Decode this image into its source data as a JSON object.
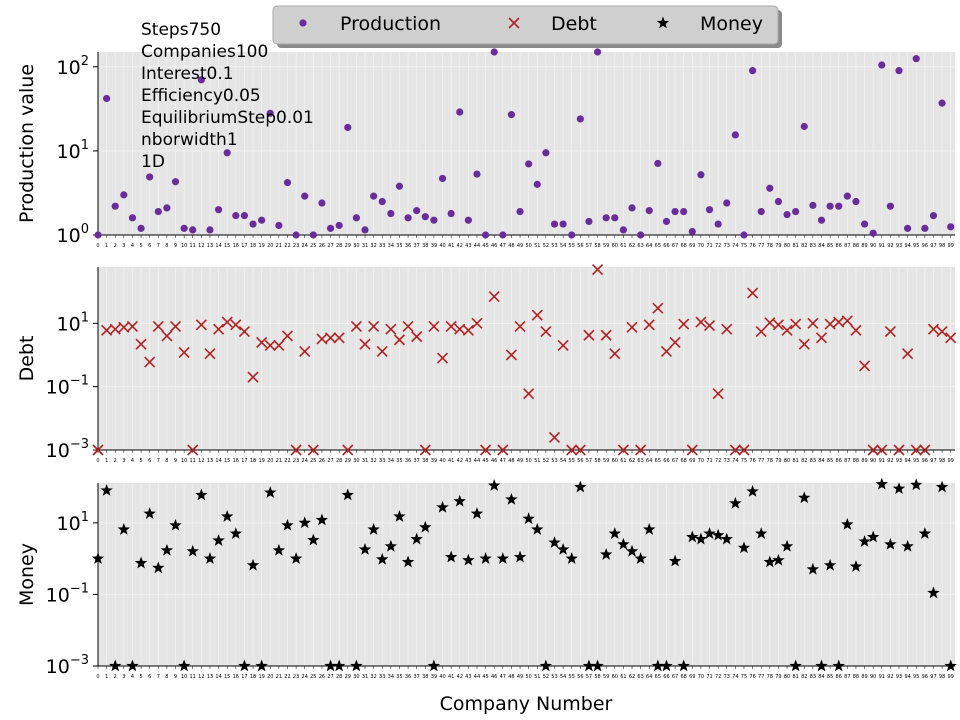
{
  "chart_data": [
    {
      "type": "scatter",
      "scale": "log",
      "ylabel": "Production value",
      "ylim": [
        1,
        150
      ],
      "yticks": [
        {
          "v": 1,
          "b": "10",
          "e": "0"
        },
        {
          "v": 10,
          "b": "10",
          "e": "1"
        },
        {
          "v": 100,
          "b": "10",
          "e": "2"
        }
      ],
      "series": [
        {
          "name": "Production",
          "color": "#6a2c9a",
          "marker": "circle"
        }
      ],
      "x": [
        0,
        1,
        2,
        3,
        4,
        5,
        6,
        7,
        8,
        9,
        10,
        11,
        12,
        13,
        14,
        15,
        16,
        17,
        18,
        19,
        20,
        21,
        22,
        23,
        24,
        25,
        26,
        27,
        28,
        29,
        30,
        31,
        32,
        33,
        34,
        35,
        36,
        37,
        38,
        39,
        40,
        41,
        42,
        43,
        44,
        45,
        46,
        47,
        48,
        49,
        50,
        51,
        52,
        53,
        54,
        55,
        56,
        57,
        58,
        59,
        60,
        61,
        62,
        63,
        64,
        65,
        66,
        67,
        68,
        69,
        70,
        71,
        72,
        73,
        74,
        75,
        76,
        77,
        78,
        79,
        80,
        81,
        82,
        83,
        84,
        85,
        86,
        87,
        88,
        89,
        90,
        91,
        92,
        93,
        94,
        95,
        96,
        97,
        98,
        99
      ],
      "values": [
        1.0,
        42,
        2.2,
        3.0,
        1.6,
        1.2,
        4.9,
        1.9,
        2.1,
        4.3,
        1.2,
        1.15,
        70,
        1.15,
        2.0,
        9.5,
        1.7,
        1.7,
        1.35,
        1.5,
        28,
        1.3,
        4.2,
        1.0,
        2.9,
        1.0,
        2.4,
        1.2,
        1.3,
        19,
        1.6,
        1.15,
        2.9,
        2.5,
        1.8,
        3.8,
        1.6,
        1.95,
        1.65,
        1.5,
        4.7,
        1.8,
        29,
        1.5,
        5.3,
        1.0,
        150,
        1.0,
        27,
        1.9,
        7,
        4.0,
        9.5,
        1.35,
        1.35,
        1.0,
        24,
        1.45,
        150,
        1.6,
        1.6,
        1.15,
        2.1,
        1.0,
        1.95,
        7.1,
        1.45,
        1.9,
        1.9,
        1.1,
        5.2,
        2.0,
        1.35,
        2.4,
        15.5,
        1.0,
        90,
        1.9,
        3.6,
        2.5,
        1.75,
        1.9,
        19.5,
        2.25,
        1.5,
        2.2,
        2.2,
        2.9,
        2.5,
        1.35,
        1.05,
        105,
        2.2,
        90,
        1.2,
        125,
        1.2,
        1.7,
        37,
        1.25
      ]
    },
    {
      "type": "scatter",
      "scale": "log",
      "ylabel": "Debt",
      "ylim": [
        0.001,
        600
      ],
      "yticks": [
        {
          "v": 0.001,
          "b": "10",
          "e": "−3"
        },
        {
          "v": 0.1,
          "b": "10",
          "e": "−1"
        },
        {
          "v": 10,
          "b": "10",
          "e": "1"
        }
      ],
      "series": [
        {
          "name": "Debt",
          "color": "#b22222",
          "marker": "x"
        }
      ],
      "x": [
        0,
        1,
        2,
        3,
        4,
        5,
        6,
        7,
        8,
        9,
        10,
        11,
        12,
        13,
        14,
        15,
        16,
        17,
        18,
        19,
        20,
        21,
        22,
        23,
        24,
        25,
        26,
        27,
        28,
        29,
        30,
        31,
        32,
        33,
        34,
        35,
        36,
        37,
        38,
        39,
        40,
        41,
        42,
        43,
        44,
        45,
        46,
        47,
        48,
        49,
        50,
        51,
        52,
        53,
        54,
        55,
        56,
        57,
        58,
        59,
        60,
        61,
        62,
        63,
        64,
        65,
        66,
        67,
        68,
        69,
        70,
        71,
        72,
        73,
        74,
        75,
        76,
        77,
        78,
        79,
        80,
        81,
        82,
        83,
        84,
        85,
        86,
        87,
        88,
        89,
        90,
        91,
        92,
        93,
        94,
        95,
        96,
        97,
        98,
        99
      ],
      "values": [
        0.001,
        6.0,
        6.5,
        7.5,
        8.0,
        2.2,
        0.6,
        8.0,
        4.0,
        8.0,
        1.2,
        0.001,
        9.0,
        1.1,
        6.5,
        11,
        9.0,
        5.5,
        0.2,
        2.5,
        2.0,
        2.0,
        4.0,
        0.001,
        1.3,
        0.001,
        3.2,
        3.5,
        3.5,
        0.001,
        8.0,
        2.2,
        8.0,
        1.3,
        6.5,
        3.0,
        8.0,
        3.8,
        0.001,
        8.0,
        0.8,
        8.0,
        6.5,
        6.0,
        10,
        0.001,
        70,
        0.001,
        1.0,
        8.0,
        0.06,
        18,
        5.5,
        0.0025,
        2.0,
        0.001,
        0.001,
        4.2,
        500,
        4.2,
        1.1,
        0.001,
        7.5,
        0.001,
        9.0,
        30,
        1.3,
        2.5,
        9.5,
        0.001,
        11,
        8.5,
        0.06,
        6.5,
        0.001,
        0.001,
        90,
        5.5,
        10.5,
        9.0,
        6.0,
        9.5,
        2.2,
        10,
        3.5,
        9.5,
        11,
        12,
        6.0,
        0.45,
        0.001,
        0.001,
        5.5,
        0.001,
        1.1,
        0.001,
        0.001,
        6.5,
        5.5,
        3.5
      ]
    },
    {
      "type": "scatter",
      "scale": "log",
      "ylabel": "Money",
      "ylim": [
        0.001,
        130
      ],
      "yticks": [
        {
          "v": 0.001,
          "b": "10",
          "e": "−3"
        },
        {
          "v": 0.1,
          "b": "10",
          "e": "−1"
        },
        {
          "v": 10,
          "b": "10",
          "e": "1"
        }
      ],
      "series": [
        {
          "name": "Money",
          "color": "#000000",
          "marker": "star"
        }
      ],
      "x": [
        0,
        1,
        2,
        3,
        4,
        5,
        6,
        7,
        8,
        9,
        10,
        11,
        12,
        13,
        14,
        15,
        16,
        17,
        18,
        19,
        20,
        21,
        22,
        23,
        24,
        25,
        26,
        27,
        28,
        29,
        30,
        31,
        32,
        33,
        34,
        35,
        36,
        37,
        38,
        39,
        40,
        41,
        42,
        43,
        44,
        45,
        46,
        47,
        48,
        49,
        50,
        51,
        52,
        53,
        54,
        55,
        56,
        57,
        58,
        59,
        60,
        61,
        62,
        63,
        64,
        65,
        66,
        67,
        68,
        69,
        70,
        71,
        72,
        73,
        74,
        75,
        76,
        77,
        78,
        79,
        80,
        81,
        82,
        83,
        84,
        85,
        86,
        87,
        88,
        89,
        90,
        91,
        92,
        93,
        94,
        95,
        96,
        97,
        98,
        99
      ],
      "values": [
        1.0,
        80,
        0.001,
        6.5,
        0.001,
        0.75,
        18,
        0.55,
        1.7,
        8.5,
        0.001,
        1.6,
        60,
        1.0,
        3.2,
        15,
        5.0,
        0.001,
        0.65,
        0.001,
        70,
        1.7,
        8.5,
        1.0,
        10,
        3.3,
        12,
        0.001,
        0.001,
        60,
        0.001,
        1.8,
        6.5,
        0.95,
        2.2,
        15,
        0.8,
        3.5,
        7.5,
        0.001,
        27,
        1.1,
        40,
        0.9,
        18,
        1.0,
        110,
        1.0,
        45,
        1.1,
        13,
        6.5,
        0.001,
        2.8,
        1.8,
        1.0,
        100,
        0.001,
        0.001,
        1.3,
        5.0,
        2.5,
        1.6,
        1.0,
        6.5,
        0.001,
        0.001,
        0.85,
        0.001,
        4.0,
        3.5,
        5.0,
        4.5,
        3.5,
        35,
        2.0,
        75,
        5.0,
        0.8,
        0.9,
        2.2,
        0.001,
        50,
        0.5,
        0.001,
        0.65,
        0.001,
        9.0,
        0.6,
        3.0,
        4.0,
        120,
        2.5,
        90,
        2.2,
        115,
        5.0,
        0.11,
        100,
        0.001
      ]
    }
  ],
  "xlabel": "Company Number",
  "legend": {
    "placement": "top-center",
    "entries": [
      {
        "label": "Production",
        "color": "#6a2c9a",
        "marker": "circle"
      },
      {
        "label": "Debt",
        "color": "#b22222",
        "marker": "x"
      },
      {
        "label": "Money",
        "color": "#000000",
        "marker": "star"
      }
    ]
  },
  "annotations": [
    "Steps750",
    "Companies100",
    "Interest0.1",
    "Efficiency0.05",
    "EquilibriumStep0.01",
    "nborwidth1",
    "1D"
  ],
  "grid": true,
  "colors": {
    "panel_bg": "#e5e5e5",
    "grid": "#f2f2f2"
  }
}
